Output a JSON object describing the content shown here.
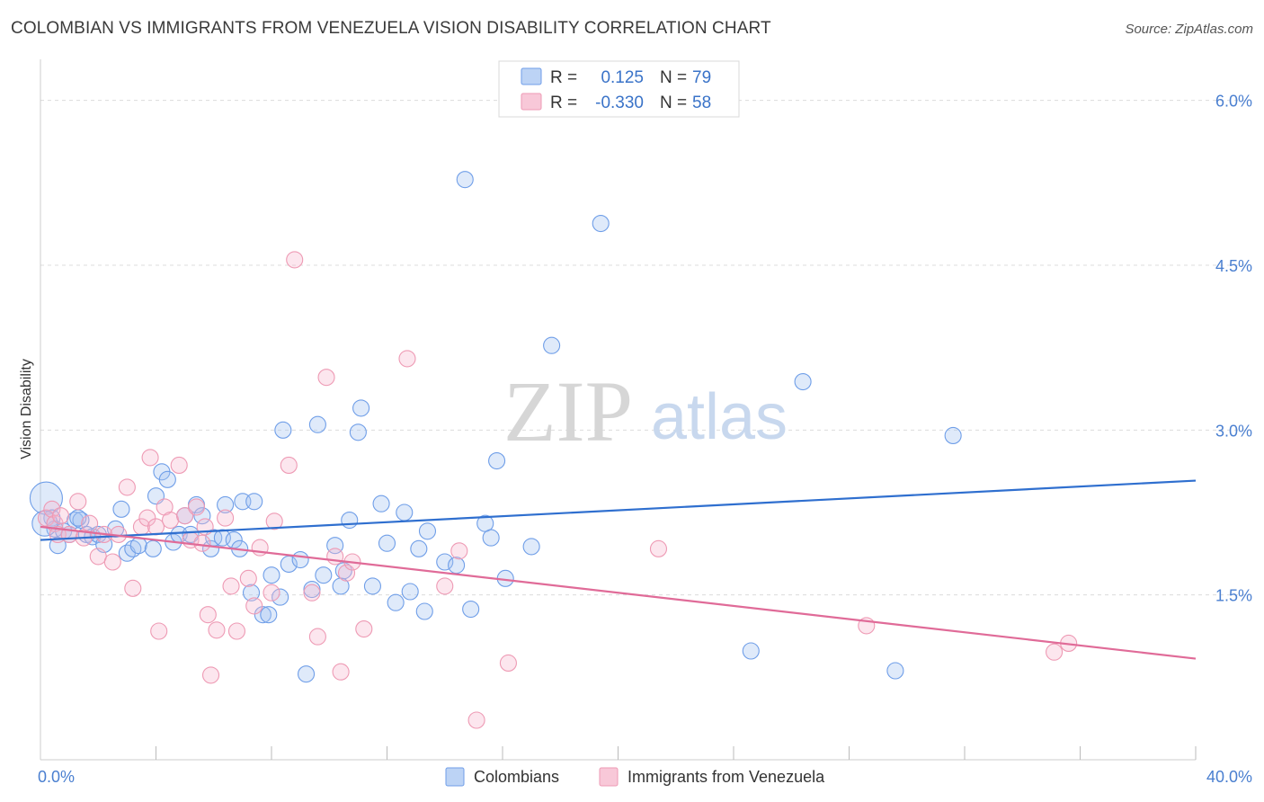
{
  "title": "COLOMBIAN VS IMMIGRANTS FROM VENEZUELA VISION DISABILITY CORRELATION CHART",
  "source": "Source: ZipAtlas.com",
  "watermark": {
    "zip": "ZIP",
    "atlas": "atlas"
  },
  "legend": {
    "rows": [
      {
        "r_label": "R =",
        "r_value": "0.125",
        "n_label": "N =",
        "n_value": "79",
        "color": "#6f9ee8"
      },
      {
        "r_label": "R =",
        "r_value": "-0.330",
        "n_label": "N =",
        "n_value": "58",
        "color": "#ee9ab4"
      }
    ]
  },
  "chart_data": {
    "type": "scatter",
    "title": "COLOMBIAN VS IMMIGRANTS FROM VENEZUELA VISION DISABILITY CORRELATION CHART",
    "xlabel": "",
    "ylabel": "Vision Disability",
    "xlim": [
      0,
      40
    ],
    "ylim": [
      0,
      6.3
    ],
    "x_tick_labels": [
      "0.0%",
      "40.0%"
    ],
    "y_ticks": [
      1.5,
      3.0,
      4.5,
      6.0
    ],
    "y_tick_labels": [
      "1.5%",
      "3.0%",
      "4.5%",
      "6.0%"
    ],
    "grid": "horizontal dashed",
    "legend_position": "top-center",
    "series": [
      {
        "name": "Colombians",
        "color": "#6f9ee8",
        "trend": {
          "x": [
            0,
            40
          ],
          "y": [
            2.0,
            2.54
          ]
        },
        "points": [
          [
            0.2,
            2.38
          ],
          [
            0.4,
            2.2
          ],
          [
            0.5,
            2.1
          ],
          [
            0.6,
            1.95
          ],
          [
            0.8,
            2.08
          ],
          [
            1.0,
            2.05
          ],
          [
            1.2,
            2.18
          ],
          [
            1.4,
            2.18
          ],
          [
            1.6,
            2.05
          ],
          [
            1.8,
            2.03
          ],
          [
            2.0,
            2.05
          ],
          [
            2.2,
            1.96
          ],
          [
            2.6,
            2.1
          ],
          [
            2.8,
            2.28
          ],
          [
            3.0,
            1.88
          ],
          [
            3.2,
            1.92
          ],
          [
            3.4,
            1.95
          ],
          [
            3.9,
            1.92
          ],
          [
            4.0,
            2.4
          ],
          [
            4.2,
            2.62
          ],
          [
            4.4,
            2.55
          ],
          [
            4.6,
            1.98
          ],
          [
            4.8,
            2.05
          ],
          [
            5.0,
            2.22
          ],
          [
            5.2,
            2.05
          ],
          [
            5.4,
            2.32
          ],
          [
            5.6,
            2.22
          ],
          [
            5.9,
            1.92
          ],
          [
            6.0,
            2.02
          ],
          [
            6.3,
            2.02
          ],
          [
            6.4,
            2.32
          ],
          [
            6.7,
            2.0
          ],
          [
            6.9,
            1.92
          ],
          [
            7.0,
            2.35
          ],
          [
            7.4,
            2.35
          ],
          [
            7.3,
            1.52
          ],
          [
            7.7,
            1.32
          ],
          [
            7.9,
            1.32
          ],
          [
            8.0,
            1.68
          ],
          [
            8.3,
            1.48
          ],
          [
            8.4,
            3.0
          ],
          [
            8.6,
            1.78
          ],
          [
            9.0,
            1.82
          ],
          [
            9.2,
            0.78
          ],
          [
            9.4,
            1.55
          ],
          [
            9.6,
            3.05
          ],
          [
            9.8,
            1.68
          ],
          [
            10.2,
            1.95
          ],
          [
            10.4,
            1.58
          ],
          [
            10.5,
            1.72
          ],
          [
            10.7,
            2.18
          ],
          [
            11.0,
            2.98
          ],
          [
            11.1,
            3.2
          ],
          [
            11.5,
            1.58
          ],
          [
            11.8,
            2.33
          ],
          [
            12.0,
            1.97
          ],
          [
            12.3,
            1.43
          ],
          [
            12.6,
            2.25
          ],
          [
            12.8,
            1.53
          ],
          [
            13.1,
            1.92
          ],
          [
            13.3,
            1.35
          ],
          [
            13.4,
            2.08
          ],
          [
            14.0,
            1.8
          ],
          [
            14.4,
            1.77
          ],
          [
            14.7,
            5.28
          ],
          [
            14.9,
            1.37
          ],
          [
            15.4,
            2.15
          ],
          [
            15.6,
            2.02
          ],
          [
            15.8,
            2.72
          ],
          [
            16.1,
            1.65
          ],
          [
            17.0,
            1.94
          ],
          [
            17.7,
            3.77
          ],
          [
            19.4,
            4.88
          ],
          [
            24.6,
            0.99
          ],
          [
            26.4,
            3.44
          ],
          [
            29.6,
            0.81
          ],
          [
            31.6,
            2.95
          ],
          [
            0.15,
            2.15
          ],
          [
            1.3,
            2.2
          ]
        ]
      },
      {
        "name": "Immigrants from Venezuela",
        "color": "#ee9ab4",
        "trend": {
          "x": [
            0,
            40
          ],
          "y": [
            2.12,
            0.92
          ]
        },
        "points": [
          [
            0.2,
            2.2
          ],
          [
            0.4,
            2.28
          ],
          [
            0.5,
            2.15
          ],
          [
            0.6,
            2.05
          ],
          [
            0.7,
            2.22
          ],
          [
            1.0,
            2.05
          ],
          [
            1.3,
            2.35
          ],
          [
            1.5,
            2.02
          ],
          [
            1.7,
            2.15
          ],
          [
            2.0,
            1.85
          ],
          [
            2.2,
            2.05
          ],
          [
            2.5,
            1.8
          ],
          [
            2.7,
            2.05
          ],
          [
            3.0,
            2.48
          ],
          [
            3.2,
            1.56
          ],
          [
            3.5,
            2.12
          ],
          [
            3.7,
            2.2
          ],
          [
            3.8,
            2.75
          ],
          [
            4.0,
            2.12
          ],
          [
            4.1,
            1.17
          ],
          [
            4.3,
            2.3
          ],
          [
            4.5,
            2.18
          ],
          [
            4.8,
            2.68
          ],
          [
            5.0,
            2.22
          ],
          [
            5.2,
            2.0
          ],
          [
            5.4,
            2.3
          ],
          [
            5.6,
            1.97
          ],
          [
            5.7,
            2.12
          ],
          [
            5.8,
            1.32
          ],
          [
            5.9,
            0.77
          ],
          [
            6.1,
            1.18
          ],
          [
            6.4,
            2.2
          ],
          [
            6.6,
            1.58
          ],
          [
            6.8,
            1.17
          ],
          [
            7.2,
            1.65
          ],
          [
            7.4,
            1.4
          ],
          [
            7.6,
            1.93
          ],
          [
            8.0,
            1.52
          ],
          [
            8.1,
            2.17
          ],
          [
            8.6,
            2.68
          ],
          [
            8.8,
            4.55
          ],
          [
            9.4,
            1.52
          ],
          [
            9.6,
            1.12
          ],
          [
            9.9,
            3.48
          ],
          [
            10.2,
            1.85
          ],
          [
            10.4,
            0.8
          ],
          [
            10.6,
            1.7
          ],
          [
            10.8,
            1.8
          ],
          [
            11.2,
            1.19
          ],
          [
            12.7,
            3.65
          ],
          [
            14.0,
            1.58
          ],
          [
            14.5,
            1.9
          ],
          [
            15.1,
            0.36
          ],
          [
            16.2,
            0.88
          ],
          [
            21.4,
            1.92
          ],
          [
            28.6,
            1.22
          ],
          [
            35.1,
            0.98
          ],
          [
            35.6,
            1.06
          ]
        ]
      }
    ]
  },
  "bottom_legend": [
    {
      "label": "Colombians",
      "color": "#6f9ee8"
    },
    {
      "label": "Immigrants from Venezuela",
      "color": "#ee9ab4"
    }
  ]
}
